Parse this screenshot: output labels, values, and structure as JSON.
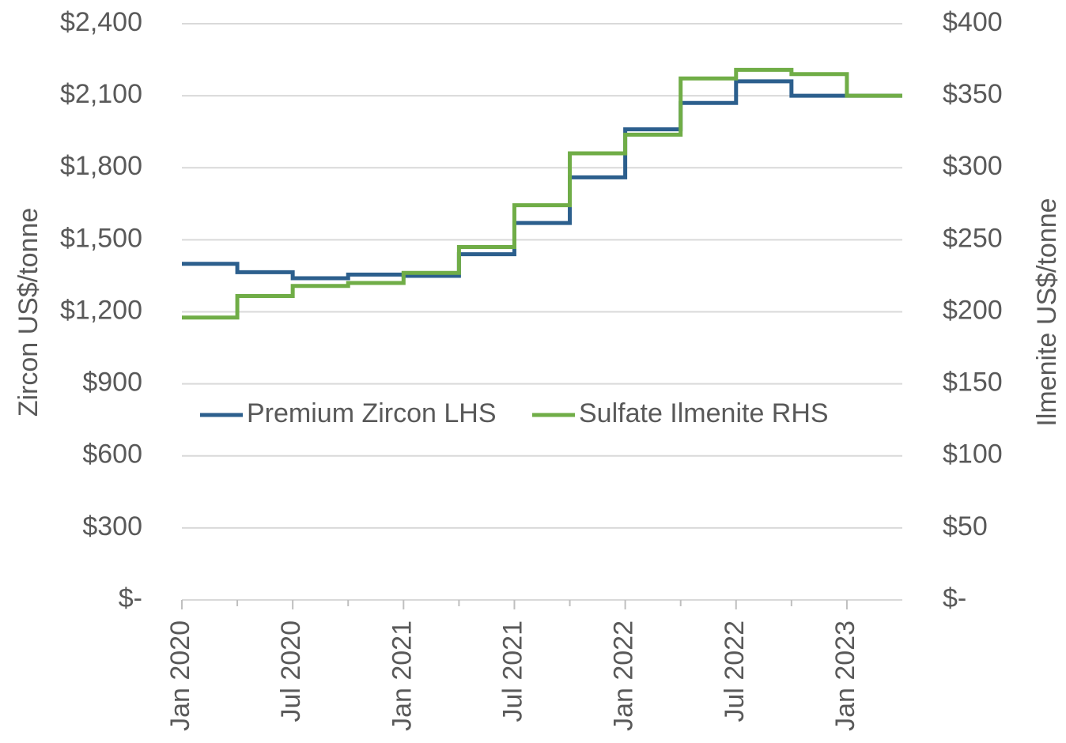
{
  "chart_data": {
    "type": "step",
    "categories": [
      "Jan 2020",
      null,
      "Jul 2020",
      null,
      "Jan 2021",
      null,
      "Jul 2021",
      null,
      "Jan 2022",
      null,
      "Jul 2022",
      null,
      "Jan 2023"
    ],
    "y_label": "Zircon US$/tonne",
    "y2_label": "Ilmenite US$/tonne",
    "ylim": [
      0,
      2400
    ],
    "yticks": [
      {
        "value": 0,
        "label": "$-"
      },
      {
        "value": 300,
        "label": "$300"
      },
      {
        "value": 600,
        "label": "$600"
      },
      {
        "value": 900,
        "label": "$900"
      },
      {
        "value": 1200,
        "label": "$1,200"
      },
      {
        "value": 1500,
        "label": "$1,500"
      },
      {
        "value": 1800,
        "label": "$1,800"
      },
      {
        "value": 2100,
        "label": "$2,100"
      },
      {
        "value": 2400,
        "label": "$2,400"
      }
    ],
    "y2lim": [
      0,
      400
    ],
    "y2ticks": [
      {
        "value": 0,
        "label": "$-"
      },
      {
        "value": 50,
        "label": "$50"
      },
      {
        "value": 100,
        "label": "$100"
      },
      {
        "value": 150,
        "label": "$150"
      },
      {
        "value": 200,
        "label": "$200"
      },
      {
        "value": 250,
        "label": "$250"
      },
      {
        "value": 300,
        "label": "$300"
      },
      {
        "value": 350,
        "label": "$350"
      },
      {
        "value": 400,
        "label": "$400"
      }
    ],
    "grid": true,
    "legend": "center",
    "series": [
      {
        "name": "Premium Zircon LHS",
        "color": "#2c5f8d",
        "values": [
          1400,
          1365,
          1340,
          1355,
          1350,
          1440,
          1570,
          1760,
          1960,
          2070,
          2160,
          2100,
          2100
        ]
      },
      {
        "name": "Sulfate Ilmenite RHS",
        "color": "#70ad47",
        "axis": "y2",
        "values": [
          196,
          211,
          218,
          220,
          227,
          245,
          274,
          310,
          323,
          362,
          368,
          365,
          350
        ]
      }
    ]
  }
}
